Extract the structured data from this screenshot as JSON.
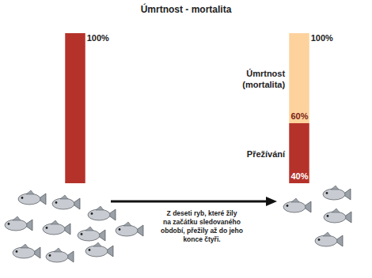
{
  "chart_data": {
    "type": "bar",
    "stacked": true,
    "data_labels": true,
    "tick_labels": false,
    "title": "Úmrtnost - mortalita",
    "categories": [
      null,
      null
    ],
    "ylim": [
      0,
      100
    ],
    "series": [
      {
        "name": "Přežívání",
        "color": "#b5322a",
        "values": [
          100,
          40
        ],
        "value_labels": [
          null,
          "40%"
        ]
      },
      {
        "name": "Úmrtnost (mortalita)",
        "color": "#fdd29d",
        "values": [
          0,
          60
        ],
        "value_labels": [
          null,
          "60%"
        ]
      }
    ],
    "annotations": [
      {
        "text": "100%",
        "category": 0,
        "value": 100
      },
      {
        "text": "100%",
        "category": 1,
        "value": 100
      }
    ],
    "caption": "Z deseti ryb, které žily na začátku sledovaného období, přežily až do jeho konce čtyři.",
    "fish_counts": [
      10,
      4
    ]
  }
}
